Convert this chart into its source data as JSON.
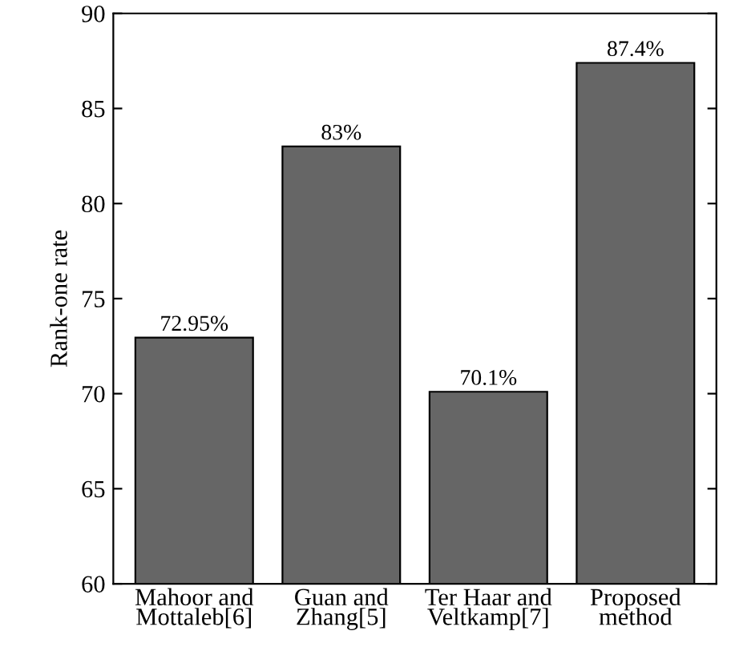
{
  "chart_data": {
    "type": "bar",
    "ylabel": "Rank-one rate",
    "categories": [
      "Mahoor and\nMottaleb[6]",
      "Guan and\nZhang[5]",
      "Ter Haar and\nVeltkamp[7]",
      "Proposed\nmethod"
    ],
    "values": [
      72.95,
      83,
      70.1,
      87.4
    ],
    "value_labels": [
      "72.95%",
      "83%",
      "70.1%",
      "87.4%"
    ],
    "color": "#666666",
    "ylim": [
      60,
      90
    ],
    "yticks": [
      60,
      65,
      70,
      75,
      80,
      85,
      90
    ],
    "grid": false,
    "legend": false
  }
}
